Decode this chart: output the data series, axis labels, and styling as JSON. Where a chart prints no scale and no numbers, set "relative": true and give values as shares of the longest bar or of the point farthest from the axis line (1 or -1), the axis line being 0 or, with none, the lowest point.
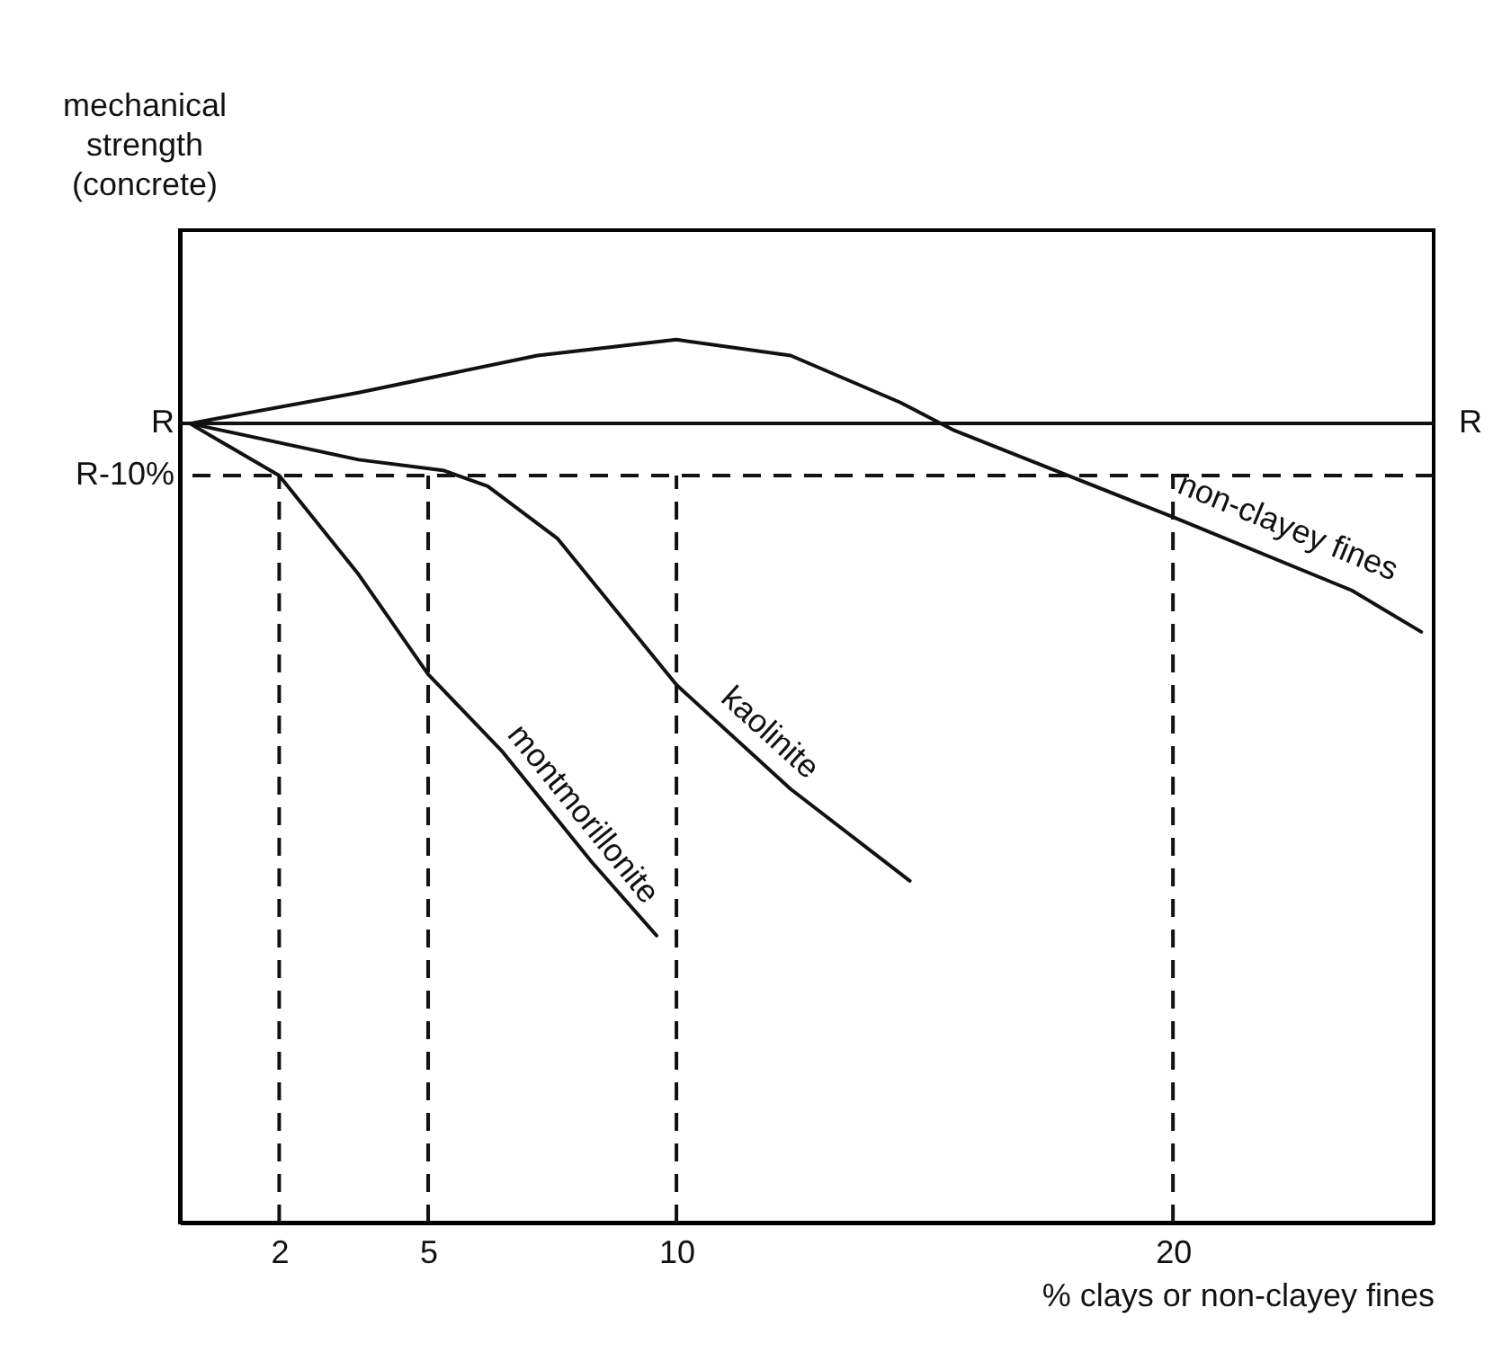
{
  "chart_data": {
    "type": "line",
    "xlabel": "% clays or non-clayey fines",
    "ylabel": "mechanical strength (concrete)",
    "relative": true,
    "xlim": [
      0,
      25.25
    ],
    "xticks": [
      2,
      5,
      10,
      20
    ],
    "grid": false,
    "legend": false,
    "marker": "none",
    "line_style": "solid",
    "ref_lines": [
      {
        "axis": "y",
        "value": 0.905,
        "label": "R",
        "line_style": "solid"
      },
      {
        "axis": "y",
        "value": 0.846,
        "label": "R-10%",
        "line_style": "dashed"
      },
      {
        "axis": "x",
        "value": 2,
        "label": null,
        "line_style": "dashed"
      },
      {
        "axis": "x",
        "value": 5,
        "label": null,
        "line_style": "dashed"
      },
      {
        "axis": "x",
        "value": 10,
        "label": null,
        "line_style": "dashed"
      },
      {
        "axis": "x",
        "value": 20,
        "label": null,
        "line_style": "dashed"
      }
    ],
    "annotations": [
      {
        "text": "R",
        "x": 25.25,
        "y": 0.905
      }
    ],
    "series": [
      {
        "name": "non-clayey fines",
        "color": "#111111",
        "x": [
          0.2,
          3.6,
          7.2,
          10,
          12.3,
          14.5,
          15.6,
          20,
          23.6,
          25
        ],
        "values": [
          0.905,
          0.94,
          0.982,
          1,
          0.982,
          0.929,
          0.897,
          0.799,
          0.716,
          0.669
        ]
      },
      {
        "name": "kaolinite",
        "color": "#111111",
        "x": [
          0.2,
          3.6,
          5.3,
          6.2,
          7.6,
          10,
          12.3,
          14.7
        ],
        "values": [
          0.905,
          0.864,
          0.852,
          0.834,
          0.775,
          0.609,
          0.491,
          0.387
        ]
      },
      {
        "name": "montmorillonite",
        "color": "#111111",
        "x": [
          0.2,
          2,
          3.6,
          5,
          6.5,
          8.3,
          9.6
        ],
        "values": [
          0.905,
          0.846,
          0.734,
          0.621,
          0.533,
          0.408,
          0.325
        ]
      }
    ]
  }
}
